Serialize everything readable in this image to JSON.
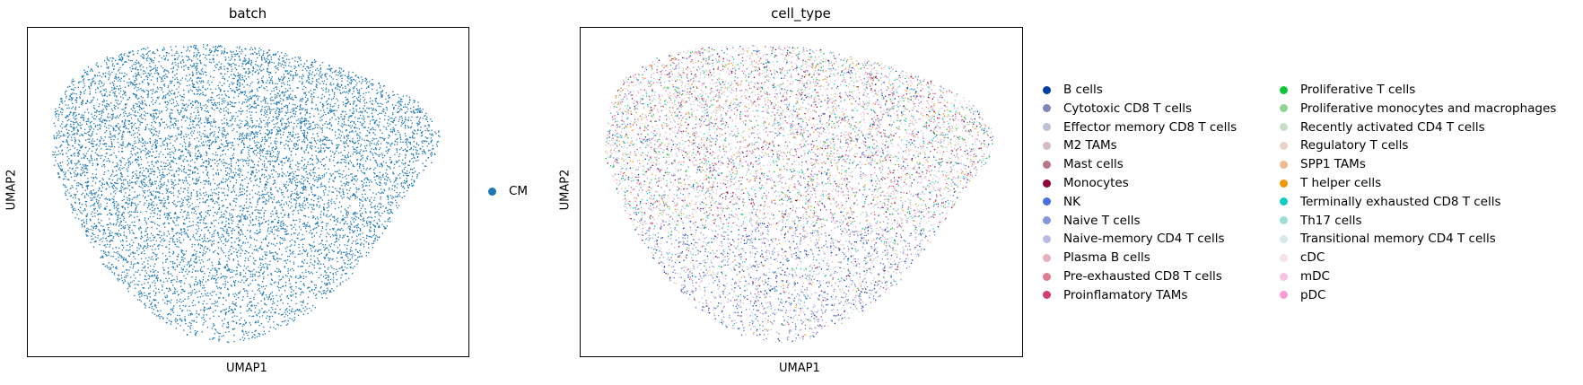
{
  "chart_data": [
    {
      "type": "scatter",
      "title": "batch",
      "xlabel": "UMAP1",
      "ylabel": "UMAP2",
      "grid": false,
      "legend_position": "right",
      "categories": [
        {
          "name": "CM",
          "color": "#1f77b4"
        }
      ]
    },
    {
      "type": "scatter",
      "title": "cell_type",
      "xlabel": "UMAP1",
      "ylabel": "UMAP2",
      "grid": false,
      "legend_position": "right",
      "legend_columns": 2,
      "categories": [
        {
          "name": "B cells",
          "color": "#023fa5"
        },
        {
          "name": "Cytotoxic CD8 T cells",
          "color": "#7d87b9"
        },
        {
          "name": "Effector memory CD8 T cells",
          "color": "#bec1d4"
        },
        {
          "name": "M2 TAMs",
          "color": "#d6bcc0"
        },
        {
          "name": "Mast cells",
          "color": "#bb7784"
        },
        {
          "name": "Monocytes",
          "color": "#8e063b"
        },
        {
          "name": "NK",
          "color": "#4a6fe3"
        },
        {
          "name": "Naive T cells",
          "color": "#8595e1"
        },
        {
          "name": "Naive-memory CD4 T cells",
          "color": "#b5bbe3"
        },
        {
          "name": "Plasma B cells",
          "color": "#e6afb9"
        },
        {
          "name": "Pre-exhausted CD8 T cells",
          "color": "#e07b91"
        },
        {
          "name": "Proinflamatory TAMs",
          "color": "#d33f6a"
        },
        {
          "name": "Proliferative T cells",
          "color": "#11c638"
        },
        {
          "name": "Proliferative monocytes and macrophages",
          "color": "#8dd593"
        },
        {
          "name": "Recently activated CD4 T cells",
          "color": "#c6dec7"
        },
        {
          "name": "Regulatory T cells",
          "color": "#ead3c6"
        },
        {
          "name": "SPP1 TAMs",
          "color": "#f0b98d"
        },
        {
          "name": "T helper cells",
          "color": "#ef9708"
        },
        {
          "name": "Terminally exhausted CD8 T cells",
          "color": "#0fcfc0"
        },
        {
          "name": "Th17 cells",
          "color": "#9cded6"
        },
        {
          "name": "Transitional memory CD4 T cells",
          "color": "#d5eae7"
        },
        {
          "name": "cDC",
          "color": "#f3e1eb"
        },
        {
          "name": "mDC",
          "color": "#f6c4e1"
        },
        {
          "name": "pDC",
          "color": "#f79cd4"
        }
      ]
    }
  ]
}
